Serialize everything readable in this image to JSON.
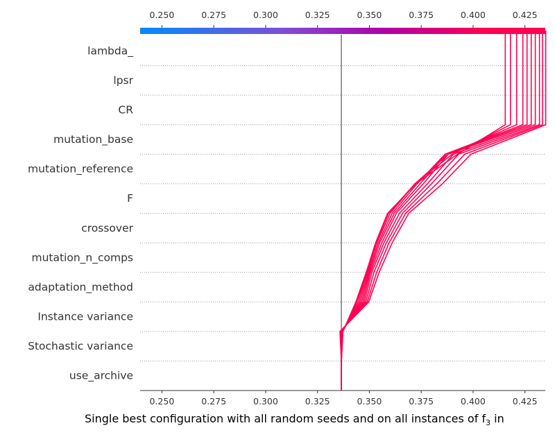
{
  "chart_data": {
    "type": "line",
    "title": "",
    "xlabel": "Single best configuration with all random seeds and on all instances of f",
    "xlabel_sub": "3",
    "xlabel_tail": " in",
    "ylabel": "",
    "xlim": [
      0.2395,
      0.4348
    ],
    "xticks": [
      "0.250",
      "0.275",
      "0.300",
      "0.325",
      "0.350",
      "0.375",
      "0.400",
      "0.425"
    ],
    "xtick_values": [
      0.25,
      0.275,
      0.3,
      0.325,
      0.35,
      0.375,
      0.4,
      0.425
    ],
    "features": [
      "lambda_",
      "lpsr",
      "CR",
      "mutation_base",
      "mutation_reference",
      "F",
      "crossover",
      "mutation_n_comps",
      "adaptation_method",
      "Instance variance",
      "Stochastic variance",
      "use_archive"
    ],
    "base_value": 0.3365,
    "colorbar": {
      "min": 0.2395,
      "max": 0.4348,
      "colors": [
        "#008bfb",
        "#7d4fd8",
        "#b000a8",
        "#ff0052"
      ]
    },
    "grid": "dotted-horizontal",
    "series": [
      {
        "values": [
          0.3365,
          0.3365,
          0.3358,
          0.3497,
          0.3547,
          0.361,
          0.369,
          0.3852,
          0.399,
          0.435
        ]
      },
      {
        "values": [
          0.3365,
          0.3365,
          0.336,
          0.349,
          0.3535,
          0.3595,
          0.3675,
          0.3825,
          0.396,
          0.4335
        ]
      },
      {
        "values": [
          0.3365,
          0.3365,
          0.3362,
          0.3483,
          0.3522,
          0.3582,
          0.366,
          0.38,
          0.393,
          0.432
        ]
      },
      {
        "values": [
          0.3365,
          0.3365,
          0.3364,
          0.3476,
          0.3512,
          0.357,
          0.3645,
          0.378,
          0.3905,
          0.43
        ]
      },
      {
        "values": [
          0.3365,
          0.3365,
          0.3366,
          0.3469,
          0.3505,
          0.356,
          0.363,
          0.376,
          0.388,
          0.428
        ]
      },
      {
        "values": [
          0.3365,
          0.3365,
          0.3368,
          0.3462,
          0.35,
          0.355,
          0.362,
          0.3745,
          0.387,
          0.426
        ]
      },
      {
        "values": [
          0.3365,
          0.3365,
          0.337,
          0.3455,
          0.3495,
          0.3543,
          0.361,
          0.373,
          0.3865,
          0.424
        ]
      },
      {
        "values": [
          0.3365,
          0.3365,
          0.3371,
          0.3448,
          0.349,
          0.3536,
          0.36,
          0.372,
          0.388,
          0.421
        ]
      },
      {
        "values": [
          0.3365,
          0.3365,
          0.3372,
          0.3441,
          0.3487,
          0.3532,
          0.3592,
          0.372,
          0.39,
          0.418
        ]
      },
      {
        "values": [
          0.3365,
          0.3365,
          0.3373,
          0.3435,
          0.3485,
          0.353,
          0.3588,
          0.3725,
          0.3925,
          0.4155
        ]
      }
    ]
  }
}
